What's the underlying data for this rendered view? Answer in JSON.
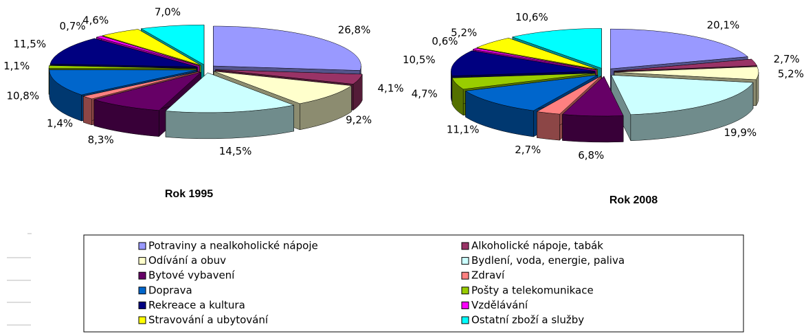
{
  "chart_data": [
    {
      "type": "pie",
      "title": "Rok 1995",
      "categories": [
        "Potraviny a nealkoholické nápoje",
        "Alkoholické nápoje, tabák",
        "Odívání a obuv",
        "Bydlení, voda, energie, paliva",
        "Bytové vybavení",
        "Zdraví",
        "Doprava",
        "Pošty a telekomunikace",
        "Rekreace a kultura",
        "Vzdělávání",
        "Stravování a ubytování",
        "Ostatní zboží a služby"
      ],
      "colors": [
        "#9999ff",
        "#993366",
        "#ffffcc",
        "#ccffff",
        "#660066",
        "#ff8080",
        "#0066cc",
        "#99cc00",
        "#000080",
        "#ff00ff",
        "#ffff00",
        "#00ffff"
      ],
      "values": [
        26.8,
        4.1,
        9.2,
        14.5,
        8.3,
        1.4,
        10.8,
        1.1,
        11.5,
        0.7,
        4.6,
        7.0
      ],
      "value_labels": [
        "26,8%",
        "4,1%",
        "9,2%",
        "14,5%",
        "8,3%",
        "1,4%",
        "10,8%",
        "1,1%",
        "11,5%",
        "0,7%",
        "4,6%",
        "7,0%"
      ]
    },
    {
      "type": "pie",
      "title": "Rok 2008",
      "values": [
        20.1,
        2.7,
        5.2,
        19.9,
        6.8,
        2.7,
        11.1,
        4.7,
        10.5,
        0.6,
        5.2,
        10.6
      ],
      "value_labels": [
        "20,1%",
        "2,7%",
        "5,2%",
        "19,9%",
        "6,8%",
        "2,7%",
        "11,1%",
        "4,7%",
        "10,5%",
        "0,6%",
        "5,2%",
        "10,6%"
      ]
    }
  ]
}
